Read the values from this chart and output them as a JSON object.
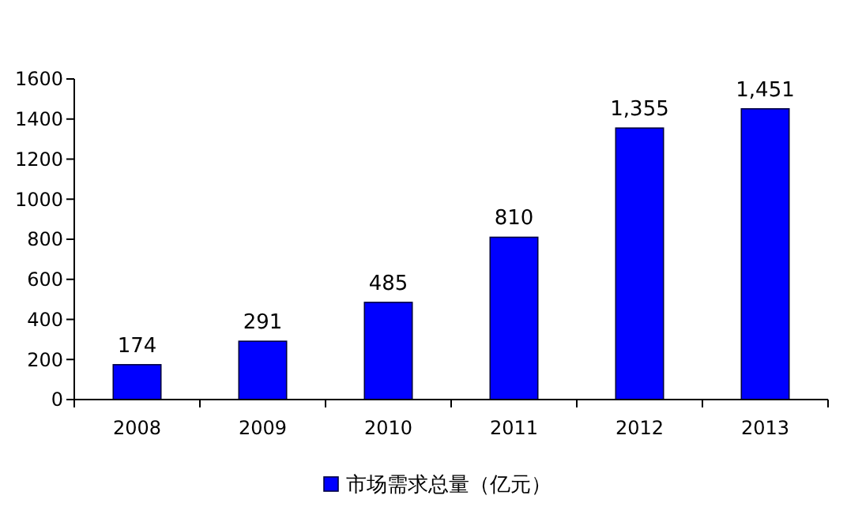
{
  "chart_data": {
    "type": "bar",
    "categories": [
      "2008",
      "2009",
      "2010",
      "2011",
      "2012",
      "2013"
    ],
    "series": [
      {
        "name": "市场需求总量（亿元）",
        "color": "#0000ff",
        "values": [
          174,
          291,
          485,
          810,
          1355,
          1451
        ]
      }
    ],
    "value_labels": [
      "174",
      "291",
      "485",
      "810",
      "1,355",
      "1,451"
    ],
    "ylim": [
      0,
      1600
    ],
    "yticks": [
      0,
      200,
      400,
      600,
      800,
      1000,
      1200,
      1400,
      1600
    ],
    "grid": false,
    "legend": "bottom"
  }
}
